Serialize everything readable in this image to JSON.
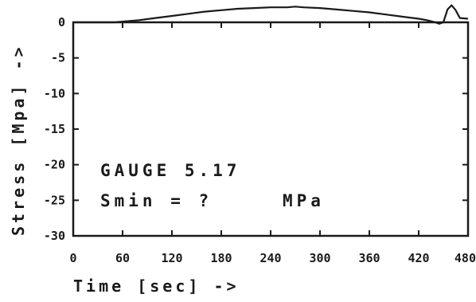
{
  "chart_data": {
    "type": "line",
    "title": "",
    "xlabel": "Time [sec] ->",
    "ylabel": "Stress [Mpa] ->",
    "xlim": [
      0,
      480
    ],
    "ylim": [
      -30,
      0
    ],
    "x_ticks": [
      0,
      60,
      120,
      180,
      240,
      300,
      360,
      420,
      480
    ],
    "x_tick_labels": [
      "0",
      "60",
      "120",
      "180",
      "240",
      "300",
      "360",
      "420",
      "480"
    ],
    "y_ticks": [
      0,
      -5,
      -10,
      -15,
      -20,
      -25,
      -30
    ],
    "y_tick_labels": [
      "0",
      "-5",
      "-10",
      "-15",
      "-20",
      "-25",
      "-30"
    ],
    "grid": false,
    "annotations": {
      "gauge": "GAUGE 5.17",
      "smin": "Smin = ?",
      "unit": "MPa"
    },
    "series": [
      {
        "x": [
          0,
          50,
          60,
          80,
          100,
          120,
          140,
          160,
          180,
          200,
          220,
          240,
          260,
          270,
          280,
          300,
          320,
          340,
          360,
          380,
          400,
          420,
          430,
          440,
          445,
          450,
          455,
          460,
          465,
          470,
          480
        ],
        "y": [
          0,
          0,
          0.1,
          0.3,
          0.6,
          0.9,
          1.2,
          1.5,
          1.7,
          1.9,
          2.0,
          2.1,
          2.1,
          2.2,
          2.1,
          2.0,
          1.8,
          1.6,
          1.4,
          1.1,
          0.8,
          0.5,
          0.3,
          0.0,
          -0.2,
          0.0,
          1.8,
          2.4,
          1.7,
          0.6,
          0.5
        ]
      }
    ]
  }
}
